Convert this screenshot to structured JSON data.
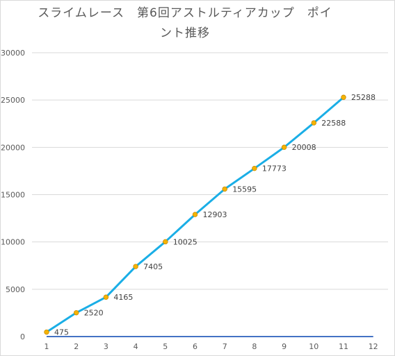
{
  "chart_data": {
    "type": "line",
    "title_line1": "スライムレース　第6回アストルティアカップ　ポイ",
    "title_line2": "ント推移",
    "x": [
      1,
      2,
      3,
      4,
      5,
      6,
      7,
      8,
      9,
      10,
      11
    ],
    "x_ticks": [
      1,
      2,
      3,
      4,
      5,
      6,
      7,
      8,
      9,
      10,
      11,
      12
    ],
    "y_ticks": [
      0,
      5000,
      10000,
      15000,
      20000,
      25000,
      30000
    ],
    "ylim": [
      0,
      30000
    ],
    "series": [
      {
        "values": [
          475,
          2520,
          4165,
          7405,
          10025,
          12903,
          15595,
          17773,
          20008,
          22588,
          25288
        ],
        "line_color": "#1aaee6",
        "marker_color": "#f5b400"
      }
    ],
    "baseline_color": "#4472c4",
    "grid": true,
    "legend": "none"
  }
}
